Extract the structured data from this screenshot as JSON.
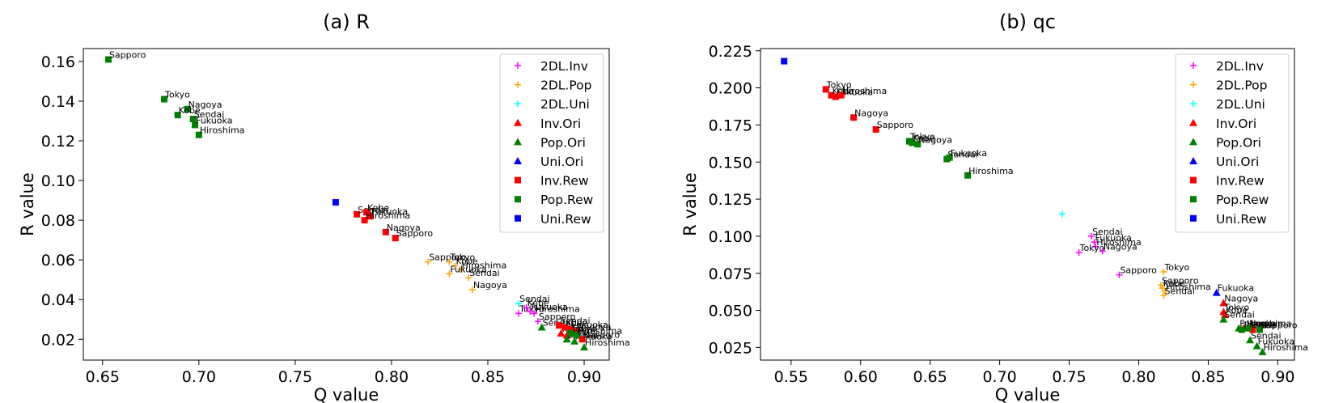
{
  "chart_data": [
    {
      "type": "scatter",
      "title": "(a) R",
      "xlabel": "Q value",
      "ylabel": "R value",
      "xlim": [
        0.64,
        0.913
      ],
      "ylim": [
        0.0095,
        0.1665
      ],
      "xticks": [
        "0.65",
        "0.70",
        "0.75",
        "0.80",
        "0.85",
        "0.90"
      ],
      "yticks": [
        "0.02",
        "0.04",
        "0.06",
        "0.08",
        "0.10",
        "0.12",
        "0.14",
        "0.16"
      ],
      "legend_position": "top-right",
      "series": [
        {
          "name": "2DL.Inv",
          "marker": "plus",
          "color": "#ff00ff",
          "points": [
            {
              "x": 0.866,
              "y": 0.033,
              "label": "Tokyo"
            },
            {
              "x": 0.87,
              "y": 0.036,
              "label": "Kobe"
            },
            {
              "x": 0.872,
              "y": 0.034,
              "label": "Fukuoka"
            },
            {
              "x": 0.874,
              "y": 0.033,
              "label": "Hiroshima"
            },
            {
              "x": 0.876,
              "y": 0.029,
              "label": "Sapporo"
            }
          ]
        },
        {
          "name": "2DL.Pop",
          "marker": "plus",
          "color": "#ffa500",
          "points": [
            {
              "x": 0.819,
              "y": 0.059,
              "label": "Sapporo"
            },
            {
              "x": 0.83,
              "y": 0.059,
              "label": "Tokyo"
            },
            {
              "x": 0.833,
              "y": 0.057,
              "label": "Kobe"
            },
            {
              "x": 0.836,
              "y": 0.055,
              "label": "Hiroshima"
            },
            {
              "x": 0.83,
              "y": 0.053,
              "label": "Fukuoka"
            },
            {
              "x": 0.84,
              "y": 0.051,
              "label": "Sendai"
            },
            {
              "x": 0.842,
              "y": 0.045,
              "label": "Nagoya"
            }
          ]
        },
        {
          "name": "2DL.Uni",
          "marker": "plus",
          "color": "#00ffff",
          "points": [
            {
              "x": 0.866,
              "y": 0.038,
              "label": "Sendai"
            }
          ]
        },
        {
          "name": "Inv.Ori",
          "marker": "triangle",
          "color": "#ff0000",
          "points": [
            {
              "x": 0.888,
              "y": 0.023,
              "label": "Kobe"
            },
            {
              "x": 0.891,
              "y": 0.022,
              "label": "Tokyo"
            }
          ]
        },
        {
          "name": "Pop.Ori",
          "marker": "triangle",
          "color": "#008000",
          "points": [
            {
              "x": 0.878,
              "y": 0.026,
              "label": "Sendai"
            },
            {
              "x": 0.891,
              "y": 0.02,
              "label": "Sendai"
            },
            {
              "x": 0.895,
              "y": 0.019,
              "label": "Fukuoka"
            },
            {
              "x": 0.9,
              "y": 0.016,
              "label": "Hiroshima"
            }
          ]
        },
        {
          "name": "Uni.Ori",
          "marker": "triangle",
          "color": "#0000ff",
          "points": []
        },
        {
          "name": "Inv.Rew",
          "marker": "square",
          "color": "#ff0000",
          "points": [
            {
              "x": 0.782,
              "y": 0.083,
              "label": "Sendai"
            },
            {
              "x": 0.787,
              "y": 0.084,
              "label": "Kobe"
            },
            {
              "x": 0.789,
              "y": 0.082,
              "label": "Fukuoka"
            },
            {
              "x": 0.786,
              "y": 0.08,
              "label": "Hiroshima"
            },
            {
              "x": 0.797,
              "y": 0.074,
              "label": "Nagoya"
            },
            {
              "x": 0.802,
              "y": 0.071,
              "label": "Sapporo"
            },
            {
              "x": 0.887,
              "y": 0.027,
              "label": "Sendai"
            },
            {
              "x": 0.89,
              "y": 0.026,
              "label": "Kobe"
            },
            {
              "x": 0.893,
              "y": 0.025,
              "label": "Fukuoka"
            },
            {
              "x": 0.896,
              "y": 0.024,
              "label": "Nagoya"
            },
            {
              "x": 0.899,
              "y": 0.02,
              "label": "Sapporo"
            }
          ]
        },
        {
          "name": "Pop.Rew",
          "marker": "square",
          "color": "#008000",
          "points": [
            {
              "x": 0.653,
              "y": 0.161,
              "label": "Sapporo"
            },
            {
              "x": 0.682,
              "y": 0.141,
              "label": "Tokyo"
            },
            {
              "x": 0.694,
              "y": 0.136,
              "label": "Nagoya"
            },
            {
              "x": 0.689,
              "y": 0.133,
              "label": "Kobe"
            },
            {
              "x": 0.697,
              "y": 0.131,
              "label": "Sendai"
            },
            {
              "x": 0.698,
              "y": 0.128,
              "label": "Fukuoka"
            },
            {
              "x": 0.7,
              "y": 0.123,
              "label": "Hiroshima"
            },
            {
              "x": 0.893,
              "y": 0.023,
              "label": "Tokyo"
            },
            {
              "x": 0.896,
              "y": 0.022,
              "label": "Hiroshima"
            }
          ]
        },
        {
          "name": "Uni.Rew",
          "marker": "square",
          "color": "#0000ff",
          "points": [
            {
              "x": 0.771,
              "y": 0.089,
              "label": ""
            }
          ]
        }
      ]
    },
    {
      "type": "scatter",
      "title": "(b) qc",
      "xlabel": "Q value",
      "ylabel": "R value",
      "xlim": [
        0.528,
        0.912
      ],
      "ylim": [
        0.0165,
        0.2265
      ],
      "xticks": [
        "0.55",
        "0.60",
        "0.65",
        "0.70",
        "0.75",
        "0.80",
        "0.85",
        "0.90"
      ],
      "yticks": [
        "0.025",
        "0.050",
        "0.075",
        "0.100",
        "0.125",
        "0.150",
        "0.175",
        "0.200",
        "0.225"
      ],
      "legend_position": "top-right",
      "series": [
        {
          "name": "2DL.Inv",
          "marker": "plus",
          "color": "#ff00ff",
          "points": [
            {
              "x": 0.766,
              "y": 0.1,
              "label": "Sendai"
            },
            {
              "x": 0.768,
              "y": 0.096,
              "label": "Fukuoka"
            },
            {
              "x": 0.769,
              "y": 0.093,
              "label": "Hiroshima"
            },
            {
              "x": 0.757,
              "y": 0.089,
              "label": "Tokyo"
            },
            {
              "x": 0.774,
              "y": 0.09,
              "label": "Nagoya"
            },
            {
              "x": 0.786,
              "y": 0.074,
              "label": "Sapporo"
            }
          ]
        },
        {
          "name": "2DL.Pop",
          "marker": "plus",
          "color": "#ffa500",
          "points": [
            {
              "x": 0.818,
              "y": 0.076,
              "label": "Tokyo"
            },
            {
              "x": 0.816,
              "y": 0.067,
              "label": "Sapporo"
            },
            {
              "x": 0.817,
              "y": 0.065,
              "label": "Kobe"
            },
            {
              "x": 0.819,
              "y": 0.063,
              "label": "Hiroshima"
            },
            {
              "x": 0.818,
              "y": 0.06,
              "label": "Sendai"
            }
          ]
        },
        {
          "name": "2DL.Uni",
          "marker": "plus",
          "color": "#00ffff",
          "points": [
            {
              "x": 0.745,
              "y": 0.115,
              "label": ""
            }
          ]
        },
        {
          "name": "Inv.Ori",
          "marker": "triangle",
          "color": "#ff0000",
          "points": [
            {
              "x": 0.861,
              "y": 0.055,
              "label": "Nagoya"
            },
            {
              "x": 0.861,
              "y": 0.049,
              "label": "Tokyo"
            },
            {
              "x": 0.862,
              "y": 0.047,
              "label": "Kobe"
            }
          ]
        },
        {
          "name": "Pop.Ori",
          "marker": "triangle",
          "color": "#008000",
          "points": [
            {
              "x": 0.861,
              "y": 0.044,
              "label": "Sendai"
            },
            {
              "x": 0.872,
              "y": 0.038,
              "label": "Fukuoka"
            },
            {
              "x": 0.88,
              "y": 0.03,
              "label": "Sendai"
            },
            {
              "x": 0.885,
              "y": 0.026,
              "label": "Fukuoka"
            },
            {
              "x": 0.889,
              "y": 0.022,
              "label": "Hiroshima"
            }
          ]
        },
        {
          "name": "Uni.Ori",
          "marker": "triangle",
          "color": "#0000ff",
          "points": [
            {
              "x": 0.856,
              "y": 0.062,
              "label": "Fukuoka"
            }
          ]
        },
        {
          "name": "Inv.Rew",
          "marker": "square",
          "color": "#ff0000",
          "points": [
            {
              "x": 0.575,
              "y": 0.199,
              "label": "Tokyo"
            },
            {
              "x": 0.579,
              "y": 0.195,
              "label": "Kobe"
            },
            {
              "x": 0.582,
              "y": 0.194,
              "label": "Fukuoka"
            },
            {
              "x": 0.586,
              "y": 0.195,
              "label": "Hiroshima"
            },
            {
              "x": 0.595,
              "y": 0.18,
              "label": "Nagoya"
            },
            {
              "x": 0.611,
              "y": 0.172,
              "label": "Sapporo"
            },
            {
              "x": 0.877,
              "y": 0.038,
              "label": "Hiroshima"
            },
            {
              "x": 0.882,
              "y": 0.037,
              "label": "Kobe"
            }
          ]
        },
        {
          "name": "Pop.Rew",
          "marker": "square",
          "color": "#008000",
          "points": [
            {
              "x": 0.635,
              "y": 0.164,
              "label": "Tokyo"
            },
            {
              "x": 0.637,
              "y": 0.163,
              "label": "Kobe"
            },
            {
              "x": 0.641,
              "y": 0.162,
              "label": "Nagoya"
            },
            {
              "x": 0.662,
              "y": 0.152,
              "label": "Sendai"
            },
            {
              "x": 0.664,
              "y": 0.153,
              "label": "Fukuoka"
            },
            {
              "x": 0.677,
              "y": 0.141,
              "label": "Hiroshima"
            },
            {
              "x": 0.874,
              "y": 0.037,
              "label": "Tokyo"
            },
            {
              "x": 0.879,
              "y": 0.038,
              "label": "Nagoya"
            },
            {
              "x": 0.887,
              "y": 0.037,
              "label": "Sapporo"
            }
          ]
        },
        {
          "name": "Uni.Rew",
          "marker": "square",
          "color": "#0000ff",
          "points": [
            {
              "x": 0.545,
              "y": 0.218,
              "label": ""
            }
          ]
        }
      ]
    }
  ]
}
